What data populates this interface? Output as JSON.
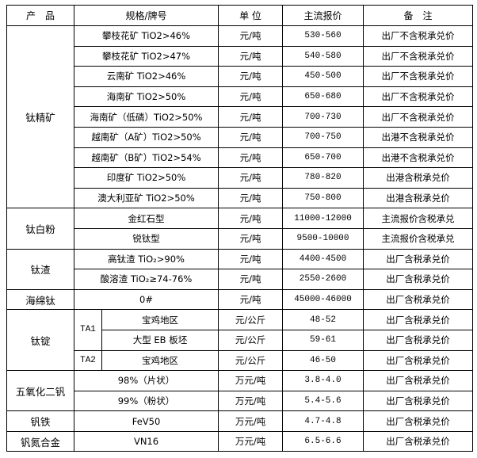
{
  "header": {
    "product": "产　品",
    "spec": "规格/牌号",
    "unit": "单 位",
    "price": "主流报价",
    "remark": "备　注"
  },
  "groups": {
    "titanium_concentrate": {
      "name": "钛精矿",
      "rows": [
        {
          "spec": "攀枝花矿 TiO2>46%",
          "unit": "元/吨",
          "price": "530-560",
          "remark": "出厂不含税承兑价"
        },
        {
          "spec": "攀枝花矿 TiO2>47%",
          "unit": "元/吨",
          "price": "540-580",
          "remark": "出厂不含税承兑价"
        },
        {
          "spec": "云南矿 TiO2>46%",
          "unit": "元/吨",
          "price": "450-500",
          "remark": "出厂不含税承兑价"
        },
        {
          "spec": "海南矿 TiO2>50%",
          "unit": "元/吨",
          "price": "650-680",
          "remark": "出厂不含税承兑价"
        },
        {
          "spec": "海南矿（低磷）TiO2>50%",
          "unit": "元/吨",
          "price": "700-730",
          "remark": "出厂不含税承兑价"
        },
        {
          "spec": "越南矿（A矿）TiO2>50%",
          "unit": "元/吨",
          "price": "700-750",
          "remark": "出港不含税承兑价"
        },
        {
          "spec": "越南矿（B矿）TiO2>54%",
          "unit": "元/吨",
          "price": "650-700",
          "remark": "出港不含税承兑价"
        },
        {
          "spec": "印度矿 TiO2>50%",
          "unit": "元/吨",
          "price": "780-820",
          "remark": "出港含税承兑价"
        },
        {
          "spec": "澳大利亚矿 TiO2>50%",
          "unit": "元/吨",
          "price": "750-800",
          "remark": "出港含税承兑价"
        }
      ]
    },
    "titanium_dioxide": {
      "name": "钛白粉",
      "rows": [
        {
          "spec": "金红石型",
          "unit": "元/吨",
          "price": "11000-12000",
          "remark": "主流报价含税承兑"
        },
        {
          "spec": "锐钛型",
          "unit": "元/吨",
          "price": "9500-10000",
          "remark": "主流报价含税承兑"
        }
      ]
    },
    "titanium_slag": {
      "name": "钛渣",
      "rows": [
        {
          "spec": "高钛渣 TiO₂>90%",
          "unit": "元/吨",
          "price": "4400-4500",
          "remark": "出厂含税承兑价"
        },
        {
          "spec": "酸溶渣 TiO₂≥74-76%",
          "unit": "元/吨",
          "price": "2550-2600",
          "remark": "出厂含税承兑价"
        }
      ]
    },
    "sponge_titanium": {
      "name": "海绵钛",
      "rows": [
        {
          "spec": "0#",
          "unit": "元/吨",
          "price": "45000-46000",
          "remark": "出厂含税承兑价"
        }
      ]
    },
    "titanium_ingot": {
      "name": "钛锭",
      "grades": [
        "TA1",
        "TA2"
      ],
      "rows": [
        {
          "spec": "宝鸡地区",
          "unit": "元/公斤",
          "price": "48-52",
          "remark": "出厂含税承兑价"
        },
        {
          "spec": "大型 EB 板坯",
          "unit": "元/公斤",
          "price": "59-61",
          "remark": "出厂含税承兑价"
        },
        {
          "spec": "宝鸡地区",
          "unit": "元/公斤",
          "price": "46-50",
          "remark": "出厂含税承兑价"
        }
      ]
    },
    "vanadium_pentoxide": {
      "name": "五氧化二钒",
      "rows": [
        {
          "spec": "98%（片状）",
          "unit": "万元/吨",
          "price": "3.8-4.0",
          "remark": "出厂含税承兑价"
        },
        {
          "spec": "99%（粉状）",
          "unit": "万元/吨",
          "price": "5.4-5.6",
          "remark": "出厂含税承兑价"
        }
      ]
    },
    "ferrovanadium": {
      "name": "钒铁",
      "rows": [
        {
          "spec": "FeV50",
          "unit": "万元/吨",
          "price": "4.7-4.8",
          "remark": "出厂含税承兑价"
        }
      ]
    },
    "vanadium_nitrogen": {
      "name": "钒氮合金",
      "rows": [
        {
          "spec": "VN16",
          "unit": "万元/吨",
          "price": "6.5-6.6",
          "remark": "出厂含税承兑价"
        }
      ]
    }
  }
}
